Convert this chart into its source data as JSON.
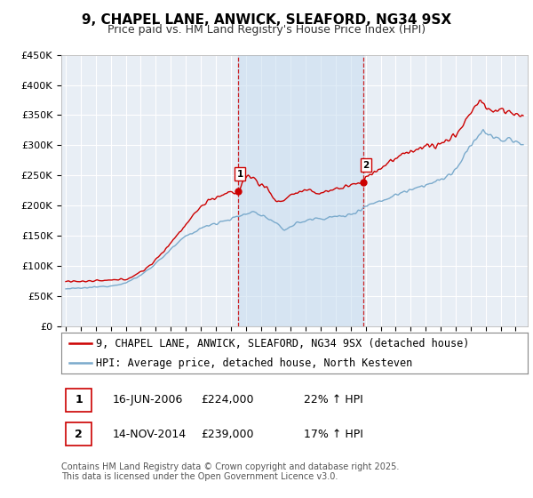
{
  "title": "9, CHAPEL LANE, ANWICK, SLEAFORD, NG34 9SX",
  "subtitle": "Price paid vs. HM Land Registry's House Price Index (HPI)",
  "background_color": "#ffffff",
  "plot_bg_color": "#e8eef5",
  "grid_color": "#ffffff",
  "ylim": [
    0,
    450000
  ],
  "xlim_start": 1994.7,
  "xlim_end": 2025.8,
  "sale1_date": 2006.46,
  "sale1_price": 224000,
  "sale2_date": 2014.87,
  "sale2_price": 239000,
  "red_line_color": "#cc0000",
  "blue_line_color": "#7aaacc",
  "vline_color": "#cc0000",
  "vspan_color": "#c8ddf0",
  "legend1_label": "9, CHAPEL LANE, ANWICK, SLEAFORD, NG34 9SX (detached house)",
  "legend2_label": "HPI: Average price, detached house, North Kesteven",
  "table_row1": [
    "1",
    "16-JUN-2006",
    "£224,000",
    "22% ↑ HPI"
  ],
  "table_row2": [
    "2",
    "14-NOV-2014",
    "£239,000",
    "17% ↑ HPI"
  ],
  "footer_text": "Contains HM Land Registry data © Crown copyright and database right 2025.\nThis data is licensed under the Open Government Licence v3.0.",
  "ytick_values": [
    0,
    50000,
    100000,
    150000,
    200000,
    250000,
    300000,
    350000,
    400000,
    450000
  ],
  "title_fontsize": 11,
  "subtitle_fontsize": 9,
  "tick_fontsize": 8,
  "legend_fontsize": 8.5,
  "footer_fontsize": 7
}
